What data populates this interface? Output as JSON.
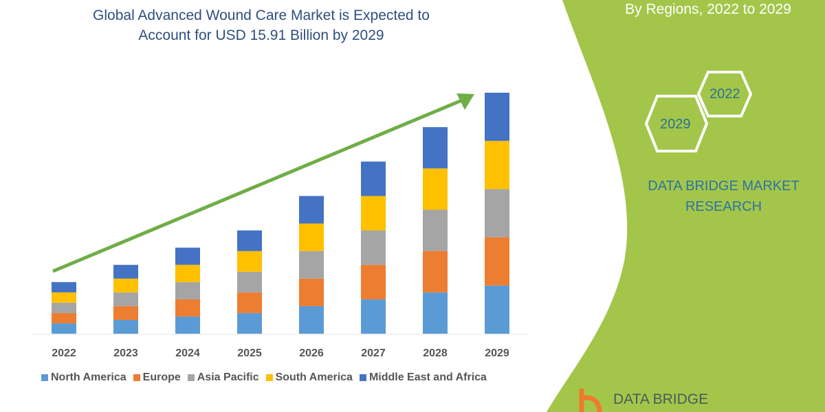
{
  "title_line1": "Global Advanced Wound Care Market is Expected to",
  "title_line2": "Account for USD 15.91 Billion by 2029",
  "side_panel": {
    "subtitle": "By Regions, 2022 to 2029",
    "hex_years": [
      "2022",
      "2029"
    ],
    "brand_line1": "DATA BRIDGE MARKET",
    "brand_line2": "RESEARCH",
    "logo_text": "DATA BRIDGE",
    "color": "#a3c64a"
  },
  "chart_data": {
    "type": "bar",
    "stacked": true,
    "categories": [
      "2022",
      "2023",
      "2024",
      "2025",
      "2026",
      "2027",
      "2028",
      "2029"
    ],
    "series": [
      {
        "name": "North America",
        "color": "#5b9bd5",
        "values": [
          15,
          20,
          25,
          30,
          40,
          50,
          60,
          70
        ]
      },
      {
        "name": "Europe",
        "color": "#ed7d31",
        "values": [
          15,
          20,
          25,
          30,
          40,
          50,
          60,
          70
        ]
      },
      {
        "name": "Asia Pacific",
        "color": "#a5a5a5",
        "values": [
          15,
          20,
          25,
          30,
          40,
          50,
          60,
          70
        ]
      },
      {
        "name": "South America",
        "color": "#ffc000",
        "values": [
          15,
          20,
          25,
          30,
          40,
          50,
          60,
          70
        ]
      },
      {
        "name": "Middle East and Africa",
        "color": "#4472c4",
        "values": [
          15,
          20,
          25,
          30,
          40,
          50,
          60,
          70
        ]
      }
    ],
    "ylim": [
      0,
      350
    ],
    "y_axis_shown": false,
    "grid": false,
    "legend_placement": "bottom",
    "trend_arrow_color": "#70ad47"
  }
}
